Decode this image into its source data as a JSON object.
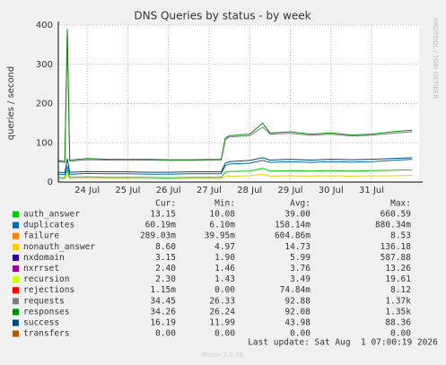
{
  "chart_data": {
    "type": "line",
    "title": "DNS Queries by status - by week",
    "y_label": "queries / second",
    "side_note": "RRDTOOL / TOBI OETIKER",
    "xlim": [
      23.29,
      32.17
    ],
    "ylim": [
      0,
      400
    ],
    "yticks": [
      0,
      100,
      200,
      300,
      400
    ],
    "grid": true,
    "xticks": [
      {
        "value": 24,
        "label": "24 Jul"
      },
      {
        "value": 25,
        "label": "25 Jul"
      },
      {
        "value": 26,
        "label": "26 Jul"
      },
      {
        "value": 27,
        "label": "27 Jul"
      },
      {
        "value": 28,
        "label": "28 Jul"
      },
      {
        "value": 29,
        "label": "29 Jul"
      },
      {
        "value": 30,
        "label": "30 Jul"
      },
      {
        "value": 31,
        "label": "31 Jul"
      }
    ],
    "x": [
      23.3,
      23.45,
      23.51,
      23.57,
      24,
      24.5,
      25,
      25.5,
      26,
      26.5,
      27.3,
      27.4,
      27.5,
      28,
      28.32,
      28.5,
      29,
      29.5,
      30,
      30.5,
      31,
      31.5,
      32
    ],
    "legend_headers": [
      "Cur:",
      "Min:",
      "Avg:",
      "Max:"
    ],
    "series": [
      {
        "name": "auth_answer",
        "color": "#00cc00",
        "stats": [
          "13.15",
          "10.08",
          "39.00",
          "660.59"
        ],
        "values": [
          12,
          11,
          30,
          12,
          13,
          12,
          12,
          12,
          11,
          12,
          12,
          25,
          27,
          28,
          35,
          28,
          29,
          28,
          29,
          28,
          29,
          30,
          31
        ]
      },
      {
        "name": "duplicates",
        "color": "#0066b3",
        "stats": [
          "60.19m",
          "6.10m",
          "158.14m",
          "880.34m"
        ],
        "values": [
          20,
          19,
          40,
          20,
          22,
          21,
          21,
          20,
          20,
          21,
          21,
          42,
          46,
          48,
          55,
          50,
          52,
          50,
          52,
          51,
          52,
          55,
          58
        ]
      },
      {
        "name": "failure",
        "color": "#ff8000",
        "stats": [
          "289.03m",
          "39.95m",
          "604.86m",
          "8.53"
        ]
      },
      {
        "name": "nonauth_answer",
        "color": "#ffcc00",
        "stats": [
          "8.60",
          "4.97",
          "14.73",
          "136.18"
        ],
        "values": [
          8,
          8,
          20,
          8,
          9,
          9,
          9,
          8,
          8,
          9,
          9,
          14,
          15,
          16,
          20,
          15,
          16,
          15,
          16,
          15,
          16,
          16,
          17
        ]
      },
      {
        "name": "nxdomain",
        "color": "#330099",
        "stats": [
          "3.15",
          "1.90",
          "5.99",
          "587.88"
        ]
      },
      {
        "name": "nxrrset",
        "color": "#990099",
        "stats": [
          "2.40",
          "1.46",
          "3.76",
          "13.26"
        ]
      },
      {
        "name": "recursion",
        "color": "#ccff00",
        "stats": [
          "2.30",
          "1.43",
          "3.49",
          "19.61"
        ]
      },
      {
        "name": "rejections",
        "color": "#ff0000",
        "stats": [
          "1.15m",
          "0.00",
          "74.84m",
          "8.12"
        ]
      },
      {
        "name": "requests",
        "color": "#808080",
        "stats": [
          "34.45",
          "26.33",
          "92.88",
          "1.37k"
        ],
        "values": [
          52,
          50,
          380,
          53,
          57,
          56,
          55,
          56,
          55,
          55,
          56,
          108,
          115,
          118,
          140,
          122,
          124,
          119,
          122,
          117,
          119,
          124,
          128
        ]
      },
      {
        "name": "responses",
        "color": "#008f00",
        "stats": [
          "34.26",
          "26.24",
          "92.08",
          "1.35k"
        ],
        "values": [
          55,
          52,
          390,
          56,
          60,
          58,
          58,
          58,
          57,
          57,
          58,
          112,
          118,
          122,
          150,
          125,
          128,
          122,
          125,
          120,
          122,
          128,
          132
        ]
      },
      {
        "name": "success",
        "color": "#00487d",
        "stats": [
          "16.19",
          "11.99",
          "43.98",
          "88.36"
        ],
        "values": [
          25,
          24,
          60,
          25,
          27,
          26,
          26,
          25,
          25,
          26,
          26,
          48,
          52,
          55,
          62,
          56,
          58,
          56,
          58,
          57,
          58,
          60,
          62
        ]
      },
      {
        "name": "transfers",
        "color": "#b35a00",
        "stats": [
          "0.00",
          "0.00",
          "0.00",
          "0.00"
        ]
      }
    ],
    "last_update": "Last update: Sat Aug  1 07:00:19 2026",
    "footer": "Munin 2.0.76"
  }
}
